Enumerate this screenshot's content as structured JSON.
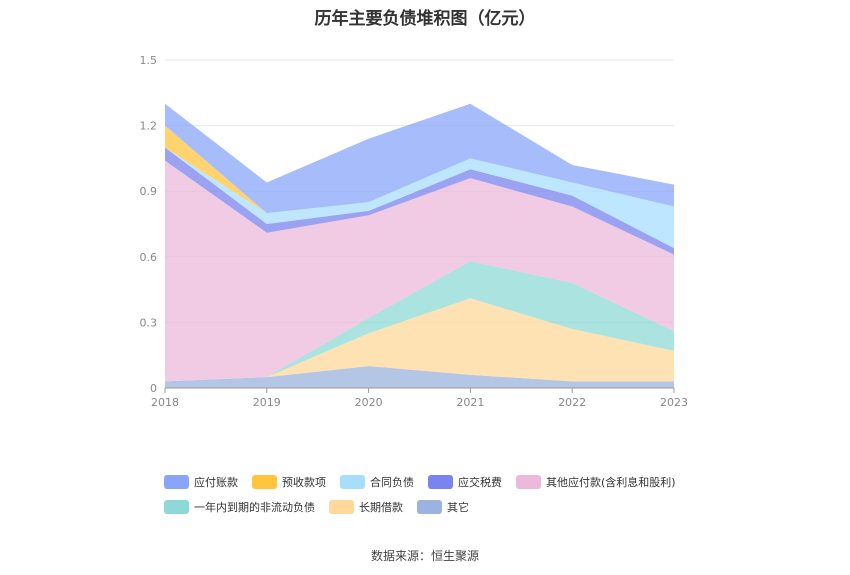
{
  "chart_data": {
    "type": "area",
    "stacked": true,
    "title": "历年主要负债堆积图（亿元）",
    "x": [
      "2018",
      "2019",
      "2020",
      "2021",
      "2022",
      "2023"
    ],
    "ylim": [
      0,
      1.5
    ],
    "yticks": [
      "0",
      "0.3",
      "0.6",
      "0.9",
      "1.2",
      "1.5"
    ],
    "grid": true,
    "legend_position": "bottom",
    "series": [
      {
        "name": "其它",
        "color": "#9BB3DE",
        "values": [
          0.03,
          0.05,
          0.1,
          0.06,
          0.03,
          0.03
        ]
      },
      {
        "name": "长期借款",
        "color": "#FFD89A",
        "values": [
          0.0,
          0.0,
          0.15,
          0.35,
          0.24,
          0.14
        ]
      },
      {
        "name": "一年内到期的非流动负债",
        "color": "#8ED9D6",
        "values": [
          0.0,
          0.0,
          0.07,
          0.17,
          0.21,
          0.09
        ]
      },
      {
        "name": "其他应付款(含利息和股利)",
        "color": "#EBB9D9",
        "values": [
          1.01,
          0.66,
          0.47,
          0.38,
          0.35,
          0.35
        ]
      },
      {
        "name": "应交税费",
        "color": "#7B83EE",
        "values": [
          0.06,
          0.04,
          0.02,
          0.04,
          0.05,
          0.03
        ]
      },
      {
        "name": "合同负债",
        "color": "#A8DEFD",
        "values": [
          0.0,
          0.05,
          0.04,
          0.05,
          0.06,
          0.19
        ]
      },
      {
        "name": "预收款项",
        "color": "#FFC53D",
        "values": [
          0.1,
          0.0,
          0.0,
          0.0,
          0.0,
          0.0
        ]
      },
      {
        "name": "应付账款",
        "color": "#88A5F9",
        "values": [
          0.1,
          0.14,
          0.29,
          0.25,
          0.08,
          0.1
        ]
      }
    ]
  },
  "legend": {
    "row1": [
      {
        "label": "应付账款",
        "color": "#88A5F9"
      },
      {
        "label": "预收款项",
        "color": "#FFC53D"
      },
      {
        "label": "合同负债",
        "color": "#A8DEFD"
      },
      {
        "label": "应交税费",
        "color": "#7B83EE"
      },
      {
        "label": "其他应付款(含利息和股利)",
        "color": "#EBB9D9"
      }
    ],
    "row2": [
      {
        "label": "一年内到期的非流动负债",
        "color": "#8ED9D6"
      },
      {
        "label": "长期借款",
        "color": "#FFD89A"
      },
      {
        "label": "其它",
        "color": "#9BB3DE"
      }
    ]
  },
  "source": "数据来源：恒生聚源"
}
